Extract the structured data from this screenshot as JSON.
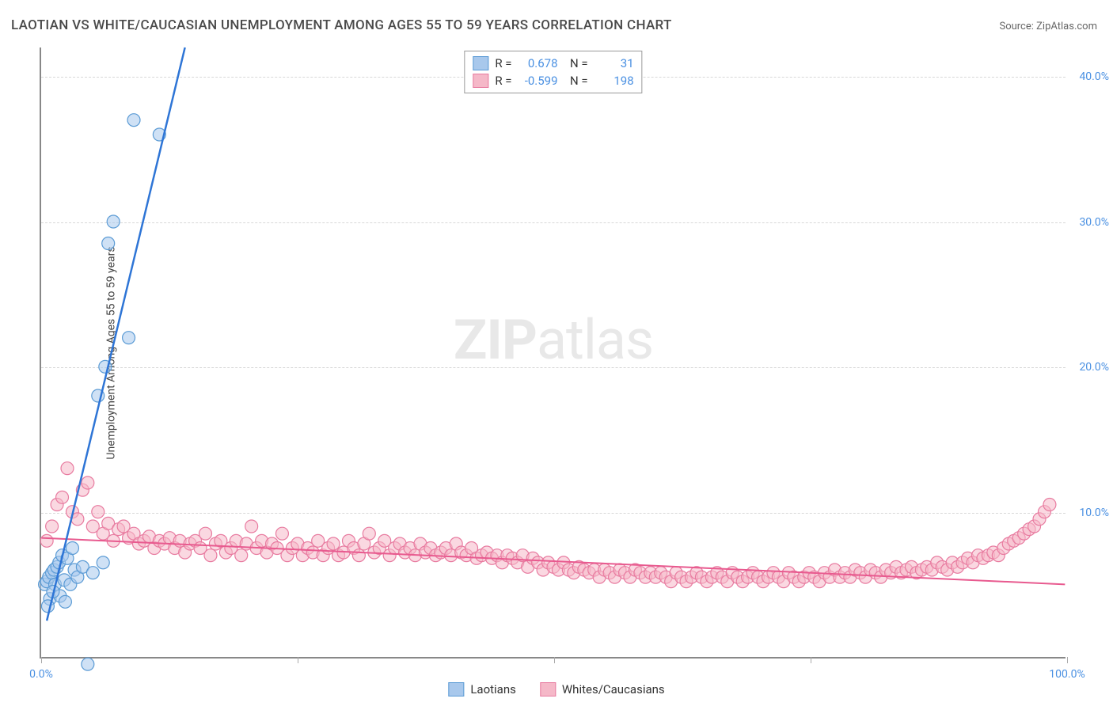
{
  "title": "LAOTIAN VS WHITE/CAUCASIAN UNEMPLOYMENT AMONG AGES 55 TO 59 YEARS CORRELATION CHART",
  "source_prefix": "Source: ",
  "source_name": "ZipAtlas.com",
  "y_axis_label": "Unemployment Among Ages 55 to 59 years",
  "watermark_a": "ZIP",
  "watermark_b": "atlas",
  "chart": {
    "type": "scatter",
    "xlim": [
      0,
      100
    ],
    "ylim": [
      0,
      42
    ],
    "x_ticks": [
      0,
      25,
      50,
      75,
      100
    ],
    "x_tick_labels": {
      "0": "0.0%",
      "100": "100.0%"
    },
    "y_ticks": [
      10,
      20,
      30,
      40
    ],
    "y_tick_labels": {
      "10": "10.0%",
      "20": "20.0%",
      "30": "30.0%",
      "40": "40.0%"
    },
    "grid_color": "#d8d8d8",
    "background_color": "#ffffff",
    "axis_color": "#888888",
    "tick_label_color": "#4a90e2",
    "marker_radius": 8,
    "marker_opacity": 0.55,
    "series": [
      {
        "name": "Laotians",
        "color_fill": "#a8c8ec",
        "color_stroke": "#5b9bd5",
        "legend_swatch_fill": "#a8c8ec",
        "legend_swatch_stroke": "#5b9bd5",
        "R": "0.678",
        "N": "31",
        "trend": {
          "x1": 0.5,
          "y1": 2.5,
          "x2": 14,
          "y2": 42,
          "color": "#2e75d6",
          "width": 2.5
        },
        "points": [
          [
            0.3,
            5.0
          ],
          [
            0.5,
            5.2
          ],
          [
            0.7,
            5.5
          ],
          [
            0.8,
            4.0
          ],
          [
            1.0,
            5.8
          ],
          [
            1.2,
            6.0
          ],
          [
            1.3,
            5.0
          ],
          [
            1.5,
            6.2
          ],
          [
            1.7,
            6.5
          ],
          [
            1.8,
            4.2
          ],
          [
            2.0,
            7.0
          ],
          [
            2.2,
            5.3
          ],
          [
            2.5,
            6.8
          ],
          [
            2.8,
            5.0
          ],
          [
            3.0,
            7.5
          ],
          [
            3.2,
            6.0
          ],
          [
            3.5,
            5.5
          ],
          [
            4.0,
            6.2
          ],
          [
            5.0,
            5.8
          ],
          [
            5.5,
            18.0
          ],
          [
            6.0,
            6.5
          ],
          [
            6.2,
            20.0
          ],
          [
            6.5,
            28.5
          ],
          [
            7.0,
            30.0
          ],
          [
            9.0,
            37.0
          ],
          [
            11.5,
            36.0
          ],
          [
            8.5,
            22.0
          ],
          [
            4.5,
            -0.5
          ],
          [
            2.3,
            3.8
          ],
          [
            1.1,
            4.5
          ],
          [
            0.6,
            3.5
          ]
        ]
      },
      {
        "name": "Whites/Caucasians",
        "color_fill": "#f5b8c8",
        "color_stroke": "#e87ba0",
        "legend_swatch_fill": "#f5b8c8",
        "legend_swatch_stroke": "#e87ba0",
        "R": "-0.599",
        "N": "198",
        "trend": {
          "x1": 0,
          "y1": 8.2,
          "x2": 100,
          "y2": 5.0,
          "color": "#e85a8f",
          "width": 2
        },
        "points": [
          [
            0.5,
            8.0
          ],
          [
            1.0,
            9.0
          ],
          [
            1.5,
            10.5
          ],
          [
            2.0,
            11.0
          ],
          [
            2.5,
            13.0
          ],
          [
            3.0,
            10.0
          ],
          [
            3.5,
            9.5
          ],
          [
            4.0,
            11.5
          ],
          [
            4.5,
            12.0
          ],
          [
            5.0,
            9.0
          ],
          [
            5.5,
            10.0
          ],
          [
            6.0,
            8.5
          ],
          [
            6.5,
            9.2
          ],
          [
            7.0,
            8.0
          ],
          [
            7.5,
            8.8
          ],
          [
            8.0,
            9.0
          ],
          [
            8.5,
            8.2
          ],
          [
            9.0,
            8.5
          ],
          [
            9.5,
            7.8
          ],
          [
            10.0,
            8.0
          ],
          [
            10.5,
            8.3
          ],
          [
            11.0,
            7.5
          ],
          [
            11.5,
            8.0
          ],
          [
            12.0,
            7.8
          ],
          [
            12.5,
            8.2
          ],
          [
            13.0,
            7.5
          ],
          [
            13.5,
            8.0
          ],
          [
            14.0,
            7.2
          ],
          [
            14.5,
            7.8
          ],
          [
            15.0,
            8.0
          ],
          [
            15.5,
            7.5
          ],
          [
            16.0,
            8.5
          ],
          [
            16.5,
            7.0
          ],
          [
            17.0,
            7.8
          ],
          [
            17.5,
            8.0
          ],
          [
            18.0,
            7.2
          ],
          [
            18.5,
            7.5
          ],
          [
            19.0,
            8.0
          ],
          [
            19.5,
            7.0
          ],
          [
            20.0,
            7.8
          ],
          [
            20.5,
            9.0
          ],
          [
            21.0,
            7.5
          ],
          [
            21.5,
            8.0
          ],
          [
            22.0,
            7.2
          ],
          [
            22.5,
            7.8
          ],
          [
            23.0,
            7.5
          ],
          [
            23.5,
            8.5
          ],
          [
            24.0,
            7.0
          ],
          [
            24.5,
            7.5
          ],
          [
            25.0,
            7.8
          ],
          [
            25.5,
            7.0
          ],
          [
            26.0,
            7.5
          ],
          [
            26.5,
            7.2
          ],
          [
            27.0,
            8.0
          ],
          [
            27.5,
            7.0
          ],
          [
            28.0,
            7.5
          ],
          [
            28.5,
            7.8
          ],
          [
            29.0,
            7.0
          ],
          [
            29.5,
            7.2
          ],
          [
            30.0,
            8.0
          ],
          [
            30.5,
            7.5
          ],
          [
            31.0,
            7.0
          ],
          [
            31.5,
            7.8
          ],
          [
            32.0,
            8.5
          ],
          [
            32.5,
            7.2
          ],
          [
            33.0,
            7.5
          ],
          [
            33.5,
            8.0
          ],
          [
            34.0,
            7.0
          ],
          [
            34.5,
            7.5
          ],
          [
            35.0,
            7.8
          ],
          [
            35.5,
            7.2
          ],
          [
            36.0,
            7.5
          ],
          [
            36.5,
            7.0
          ],
          [
            37.0,
            7.8
          ],
          [
            37.5,
            7.2
          ],
          [
            38.0,
            7.5
          ],
          [
            38.5,
            7.0
          ],
          [
            39.0,
            7.2
          ],
          [
            39.5,
            7.5
          ],
          [
            40.0,
            7.0
          ],
          [
            40.5,
            7.8
          ],
          [
            41.0,
            7.2
          ],
          [
            41.5,
            7.0
          ],
          [
            42.0,
            7.5
          ],
          [
            42.5,
            6.8
          ],
          [
            43.0,
            7.0
          ],
          [
            43.5,
            7.2
          ],
          [
            44.0,
            6.8
          ],
          [
            44.5,
            7.0
          ],
          [
            45.0,
            6.5
          ],
          [
            45.5,
            7.0
          ],
          [
            46.0,
            6.8
          ],
          [
            46.5,
            6.5
          ],
          [
            47.0,
            7.0
          ],
          [
            47.5,
            6.2
          ],
          [
            48.0,
            6.8
          ],
          [
            48.5,
            6.5
          ],
          [
            49.0,
            6.0
          ],
          [
            49.5,
            6.5
          ],
          [
            50.0,
            6.2
          ],
          [
            50.5,
            6.0
          ],
          [
            51.0,
            6.5
          ],
          [
            51.5,
            6.0
          ],
          [
            52.0,
            5.8
          ],
          [
            52.5,
            6.2
          ],
          [
            53.0,
            6.0
          ],
          [
            53.5,
            5.8
          ],
          [
            54.0,
            6.0
          ],
          [
            54.5,
            5.5
          ],
          [
            55.0,
            6.0
          ],
          [
            55.5,
            5.8
          ],
          [
            56.0,
            5.5
          ],
          [
            56.5,
            6.0
          ],
          [
            57.0,
            5.8
          ],
          [
            57.5,
            5.5
          ],
          [
            58.0,
            6.0
          ],
          [
            58.5,
            5.8
          ],
          [
            59.0,
            5.5
          ],
          [
            59.5,
            5.8
          ],
          [
            60.0,
            5.5
          ],
          [
            60.5,
            5.8
          ],
          [
            61.0,
            5.5
          ],
          [
            61.5,
            5.2
          ],
          [
            62.0,
            5.8
          ],
          [
            62.5,
            5.5
          ],
          [
            63.0,
            5.2
          ],
          [
            63.5,
            5.5
          ],
          [
            64.0,
            5.8
          ],
          [
            64.5,
            5.5
          ],
          [
            65.0,
            5.2
          ],
          [
            65.5,
            5.5
          ],
          [
            66.0,
            5.8
          ],
          [
            66.5,
            5.5
          ],
          [
            67.0,
            5.2
          ],
          [
            67.5,
            5.8
          ],
          [
            68.0,
            5.5
          ],
          [
            68.5,
            5.2
          ],
          [
            69.0,
            5.5
          ],
          [
            69.5,
            5.8
          ],
          [
            70.0,
            5.5
          ],
          [
            70.5,
            5.2
          ],
          [
            71.0,
            5.5
          ],
          [
            71.5,
            5.8
          ],
          [
            72.0,
            5.5
          ],
          [
            72.5,
            5.2
          ],
          [
            73.0,
            5.8
          ],
          [
            73.5,
            5.5
          ],
          [
            74.0,
            5.2
          ],
          [
            74.5,
            5.5
          ],
          [
            75.0,
            5.8
          ],
          [
            75.5,
            5.5
          ],
          [
            76.0,
            5.2
          ],
          [
            76.5,
            5.8
          ],
          [
            77.0,
            5.5
          ],
          [
            77.5,
            6.0
          ],
          [
            78.0,
            5.5
          ],
          [
            78.5,
            5.8
          ],
          [
            79.0,
            5.5
          ],
          [
            79.5,
            6.0
          ],
          [
            80.0,
            5.8
          ],
          [
            80.5,
            5.5
          ],
          [
            81.0,
            6.0
          ],
          [
            81.5,
            5.8
          ],
          [
            82.0,
            5.5
          ],
          [
            82.5,
            6.0
          ],
          [
            83.0,
            5.8
          ],
          [
            83.5,
            6.2
          ],
          [
            84.0,
            5.8
          ],
          [
            84.5,
            6.0
          ],
          [
            85.0,
            6.2
          ],
          [
            85.5,
            5.8
          ],
          [
            86.0,
            6.0
          ],
          [
            86.5,
            6.2
          ],
          [
            87.0,
            6.0
          ],
          [
            87.5,
            6.5
          ],
          [
            88.0,
            6.2
          ],
          [
            88.5,
            6.0
          ],
          [
            89.0,
            6.5
          ],
          [
            89.5,
            6.2
          ],
          [
            90.0,
            6.5
          ],
          [
            90.5,
            6.8
          ],
          [
            91.0,
            6.5
          ],
          [
            91.5,
            7.0
          ],
          [
            92.0,
            6.8
          ],
          [
            92.5,
            7.0
          ],
          [
            93.0,
            7.2
          ],
          [
            93.5,
            7.0
          ],
          [
            94.0,
            7.5
          ],
          [
            94.5,
            7.8
          ],
          [
            95.0,
            8.0
          ],
          [
            95.5,
            8.2
          ],
          [
            96.0,
            8.5
          ],
          [
            96.5,
            8.8
          ],
          [
            97.0,
            9.0
          ],
          [
            97.5,
            9.5
          ],
          [
            98.0,
            10.0
          ],
          [
            98.5,
            10.5
          ]
        ]
      }
    ]
  },
  "legend_bottom": [
    {
      "label": "Laotians",
      "fill": "#a8c8ec",
      "stroke": "#5b9bd5"
    },
    {
      "label": "Whites/Caucasians",
      "fill": "#f5b8c8",
      "stroke": "#e87ba0"
    }
  ]
}
